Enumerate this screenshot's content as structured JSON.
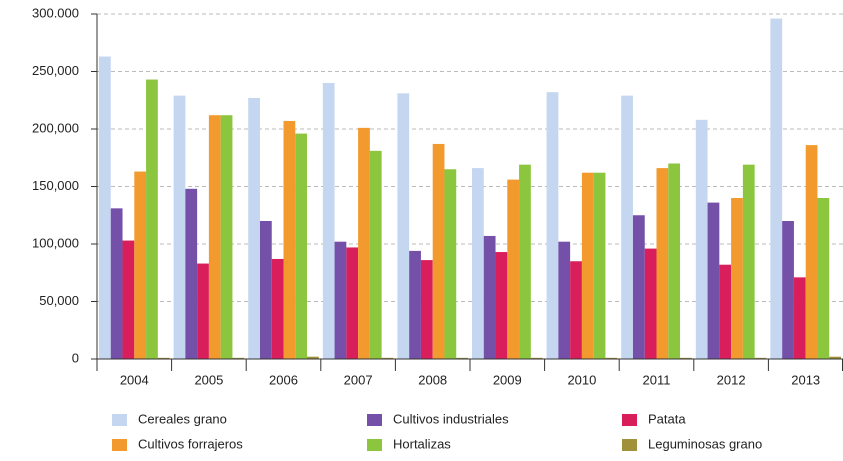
{
  "chart_data": {
    "type": "bar",
    "categories": [
      "2004",
      "2005",
      "2006",
      "2007",
      "2008",
      "2009",
      "2010",
      "2011",
      "2012",
      "2013"
    ],
    "series": [
      {
        "name": "Cereales grano",
        "color": "#c5d6f0",
        "values": [
          263000,
          229000,
          227000,
          240000,
          231000,
          166000,
          232000,
          229000,
          208000,
          296000
        ]
      },
      {
        "name": "Cultivos industriales",
        "color": "#7450a8",
        "values": [
          131000,
          148000,
          120000,
          102000,
          94000,
          107000,
          102000,
          125000,
          136000,
          120000
        ]
      },
      {
        "name": "Patata",
        "color": "#d81e5b",
        "values": [
          103000,
          83000,
          87000,
          97000,
          86000,
          93000,
          85000,
          96000,
          82000,
          71000
        ]
      },
      {
        "name": "Cultivos forrajeros",
        "color": "#f39a2e",
        "values": [
          163000,
          212000,
          207000,
          201000,
          187000,
          156000,
          162000,
          166000,
          140000,
          186000
        ]
      },
      {
        "name": "Hortalizas",
        "color": "#8cc63f",
        "values": [
          243000,
          212000,
          196000,
          181000,
          165000,
          169000,
          162000,
          170000,
          169000,
          140000
        ]
      },
      {
        "name": "Leguminosas grano",
        "color": "#a0913a",
        "values": [
          1000,
          1000,
          2000,
          1000,
          1000,
          1000,
          1000,
          1000,
          1000,
          2000
        ]
      }
    ],
    "ylim": [
      0,
      300000
    ],
    "yticks": [
      0,
      {
        "value": 50000,
        "label": "50,000"
      },
      {
        "value": 100000,
        "label": "100,000"
      },
      {
        "value": 150000,
        "label": "150,000"
      },
      {
        "value": 200000,
        "label": "200,000"
      },
      {
        "value": 250000,
        "label": "250,000"
      },
      {
        "value": 300000,
        "label": "300.000"
      }
    ],
    "grid": true
  }
}
